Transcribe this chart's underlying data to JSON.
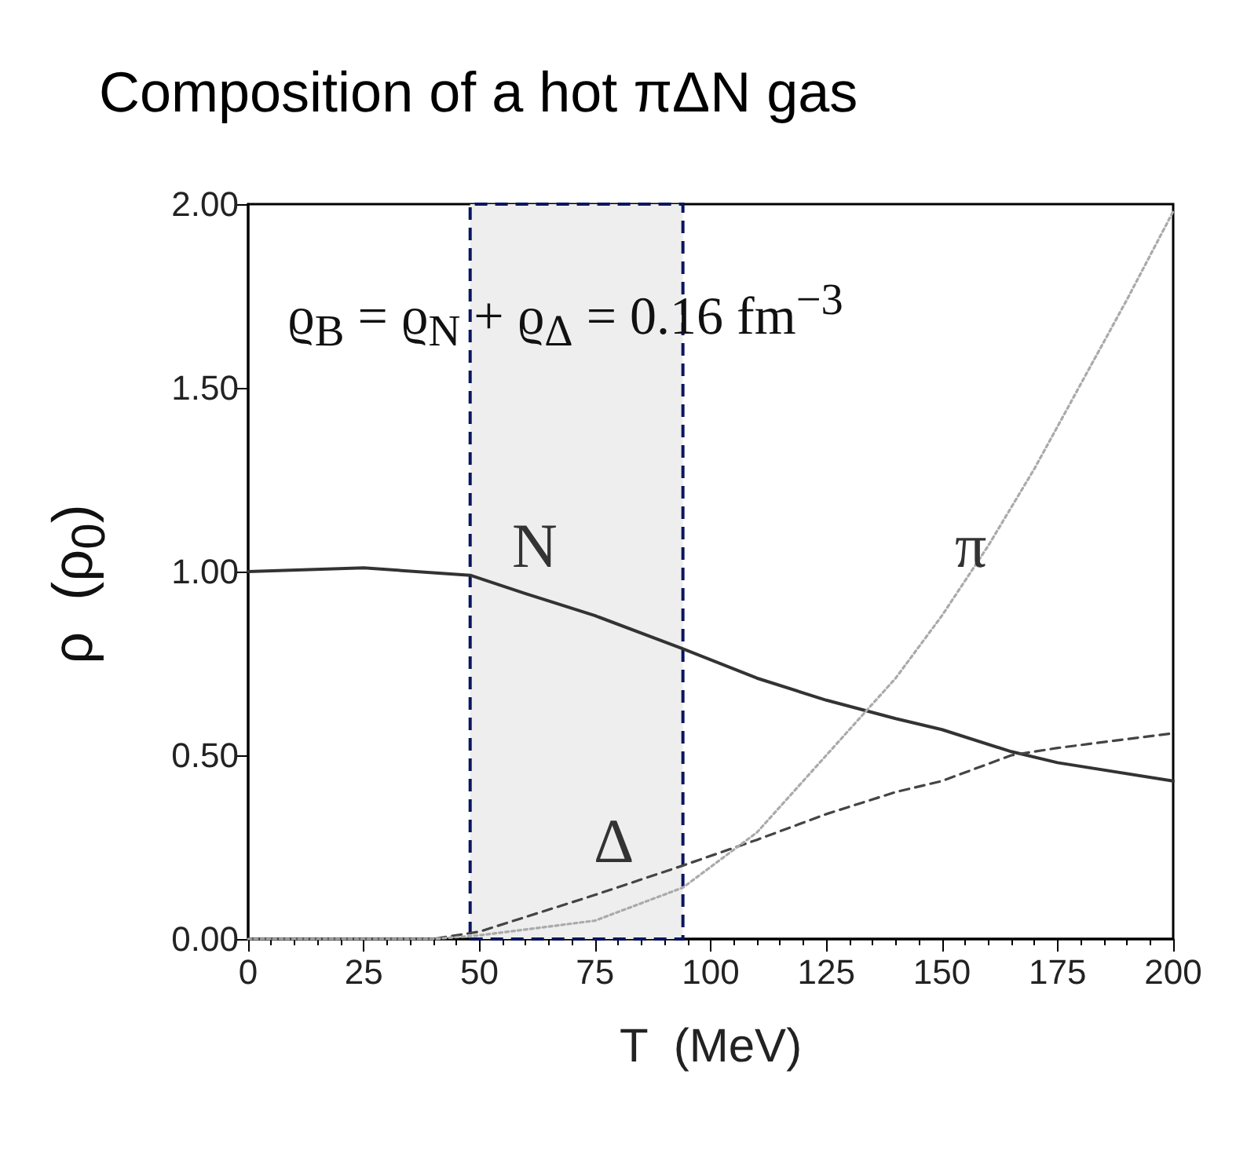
{
  "chart_data": {
    "type": "line",
    "title": "Composition of a hot πΔN gas",
    "xlabel": "T  (MeV)",
    "ylabel": "ρ  (ρ$_{0}$)",
    "x": [
      0,
      25,
      48,
      60,
      75,
      94,
      110,
      125,
      140,
      150,
      165,
      175,
      200
    ],
    "series": [
      {
        "color": "#333333",
        "line_style": "solid",
        "values": [
          1.0,
          1.01,
          0.99,
          0.94,
          0.88,
          0.79,
          0.71,
          0.65,
          0.6,
          0.57,
          0.51,
          0.48,
          0.43
        ]
      },
      {
        "color": "#444444",
        "line_style": "dashed",
        "x": [
          0,
          40,
          50,
          60,
          75,
          94,
          110,
          125,
          140,
          150,
          165,
          175,
          200
        ],
        "values": [
          0,
          0,
          0.02,
          0.06,
          0.12,
          0.2,
          0.27,
          0.34,
          0.4,
          0.43,
          0.5,
          0.52,
          0.56
        ]
      },
      {
        "color": "#aaaaaa",
        "line_style": "dotted",
        "x": [
          0,
          40,
          50,
          75,
          94,
          110,
          120,
          130,
          140,
          150,
          160,
          170,
          180,
          190,
          200
        ],
        "values": [
          0,
          0,
          0.01,
          0.05,
          0.14,
          0.29,
          0.43,
          0.57,
          0.71,
          0.88,
          1.07,
          1.28,
          1.51,
          1.74,
          1.98
        ]
      }
    ],
    "xlim": [
      0,
      200
    ],
    "xticks": [
      0,
      25,
      50,
      75,
      100,
      125,
      150,
      175,
      200
    ],
    "ylim": [
      0,
      2
    ],
    "yticks": [
      {
        "value": 0,
        "label": "0.00"
      },
      {
        "value": 0.5,
        "label": "0.50"
      },
      {
        "value": 1,
        "label": "1.00"
      },
      {
        "value": 1.5,
        "label": "1.50"
      },
      {
        "value": 2,
        "label": "2.00"
      }
    ],
    "bands": [
      {
        "axis": "x",
        "from": 48,
        "to": 94,
        "color": "#eeeeee"
      }
    ],
    "annotations": [
      "ϱ$_{B}$ = ϱ$_{N}$ + ϱ$_{Δ}$ = 0.16 fm$^{−3}$",
      "N",
      "Δ",
      "π"
    ],
    "grid": false,
    "marker": "none"
  }
}
